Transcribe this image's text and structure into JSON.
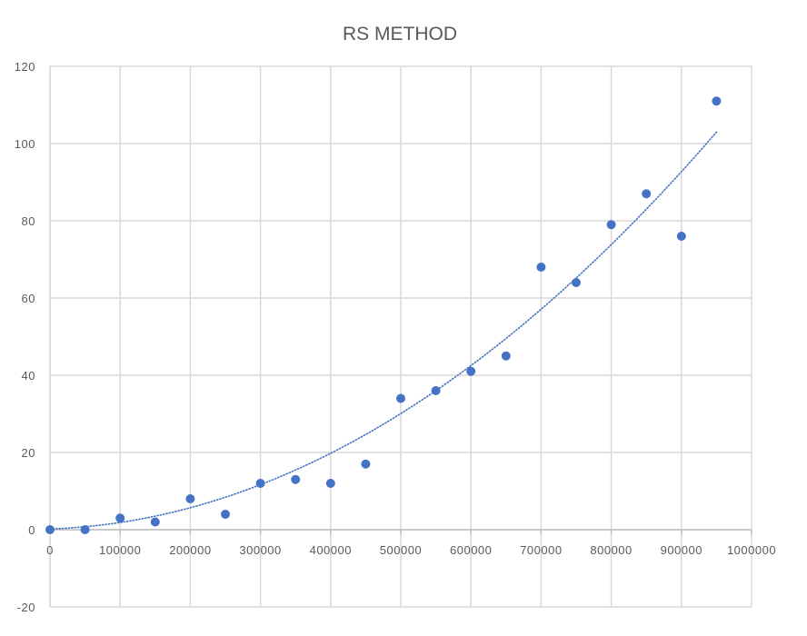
{
  "chart_data": {
    "type": "scatter",
    "title": "RS METHOD",
    "xlabel": "",
    "ylabel": "",
    "xlim": [
      0,
      1000000
    ],
    "ylim": [
      -20,
      120
    ],
    "x_ticks": [
      0,
      100000,
      200000,
      300000,
      400000,
      500000,
      600000,
      700000,
      800000,
      900000,
      1000000
    ],
    "x_tick_labels": [
      "0",
      "100000",
      "200000",
      "300000",
      "400000",
      "500000",
      "600000",
      "700000",
      "800000",
      "900000",
      "1000000"
    ],
    "y_ticks": [
      -20,
      0,
      20,
      40,
      60,
      80,
      100,
      120
    ],
    "y_tick_labels": [
      "-20",
      "0",
      "20",
      "40",
      "60",
      "80",
      "100",
      "120"
    ],
    "grid": true,
    "legend": "none",
    "colors": {
      "points": "#4472C4",
      "trendline": "#4472C4",
      "grid": "#D9D9D9",
      "text": "#595959"
    },
    "series": [
      {
        "x": [
          0,
          50000,
          100000,
          150000,
          200000,
          250000,
          300000,
          350000,
          400000,
          450000,
          500000,
          550000,
          600000,
          650000,
          700000,
          750000,
          800000,
          850000,
          900000,
          950000
        ],
        "y": [
          0,
          0,
          3,
          2,
          8,
          4,
          12,
          13,
          12,
          17,
          34,
          36,
          41,
          45,
          68,
          64,
          79,
          87,
          76,
          111
        ]
      }
    ],
    "trendline": {
      "type": "polynomial",
      "style": "dotted",
      "x_range": [
        0,
        950000
      ],
      "coefficients": [
        0.2,
        5.9e-06,
        1.0766e-10
      ]
    }
  }
}
